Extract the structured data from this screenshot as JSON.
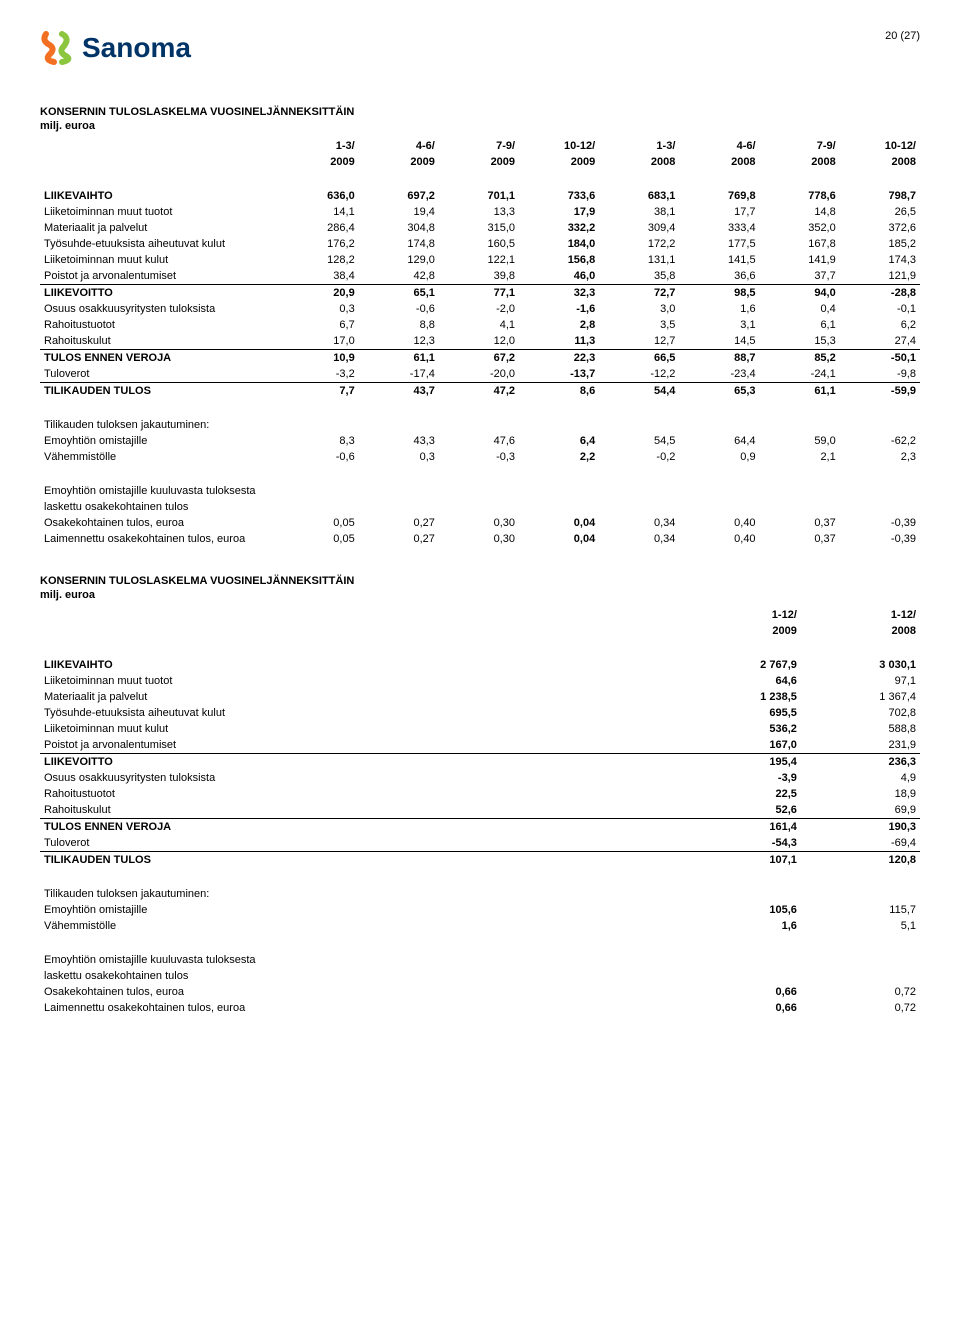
{
  "page_number": "20 (27)",
  "brand": "Sanoma",
  "logo_colors": {
    "orange": "#f36f21",
    "green": "#8cc63f",
    "navy": "#003366"
  },
  "section1_title": "KONSERNIN TULOSLASKELMA VUOSINELJÄNNEKSITTÄIN",
  "section1_sub": "milj. euroa",
  "t1": {
    "headers1": [
      "1-3/",
      "4-6/",
      "7-9/",
      "10-12/",
      "1-3/",
      "4-6/",
      "7-9/",
      "10-12/"
    ],
    "headers2": [
      "2009",
      "2009",
      "2009",
      "2009",
      "2008",
      "2008",
      "2008",
      "2008"
    ],
    "rows": [
      {
        "label": "LIIKEVAIHTO",
        "v": [
          "636,0",
          "697,2",
          "701,1",
          "733,6",
          "683,1",
          "769,8",
          "778,6",
          "798,7"
        ],
        "bold": true,
        "sep": false
      },
      {
        "label": "Liiketoiminnan muut tuotot",
        "v": [
          "14,1",
          "19,4",
          "13,3",
          "17,9",
          "38,1",
          "17,7",
          "14,8",
          "26,5"
        ]
      },
      {
        "label": "Materiaalit ja palvelut",
        "v": [
          "286,4",
          "304,8",
          "315,0",
          "332,2",
          "309,4",
          "333,4",
          "352,0",
          "372,6"
        ]
      },
      {
        "label": "Työsuhde-etuuksista aiheutuvat kulut",
        "v": [
          "176,2",
          "174,8",
          "160,5",
          "184,0",
          "172,2",
          "177,5",
          "167,8",
          "185,2"
        ]
      },
      {
        "label": "Liiketoiminnan muut kulut",
        "v": [
          "128,2",
          "129,0",
          "122,1",
          "156,8",
          "131,1",
          "141,5",
          "141,9",
          "174,3"
        ]
      },
      {
        "label": "Poistot ja arvonalentumiset",
        "v": [
          "38,4",
          "42,8",
          "39,8",
          "46,0",
          "35,8",
          "36,6",
          "37,7",
          "121,9"
        ]
      },
      {
        "label": "LIIKEVOITTO",
        "v": [
          "20,9",
          "65,1",
          "77,1",
          "32,3",
          "72,7",
          "98,5",
          "94,0",
          "-28,8"
        ],
        "bold": true,
        "sep": true
      },
      {
        "label": "Osuus osakkuusyritysten tuloksista",
        "v": [
          "0,3",
          "-0,6",
          "-2,0",
          "-1,6",
          "3,0",
          "1,6",
          "0,4",
          "-0,1"
        ]
      },
      {
        "label": "Rahoitustuotot",
        "v": [
          "6,7",
          "8,8",
          "4,1",
          "2,8",
          "3,5",
          "3,1",
          "6,1",
          "6,2"
        ]
      },
      {
        "label": "Rahoituskulut",
        "v": [
          "17,0",
          "12,3",
          "12,0",
          "11,3",
          "12,7",
          "14,5",
          "15,3",
          "27,4"
        ]
      },
      {
        "label": "TULOS ENNEN VEROJA",
        "v": [
          "10,9",
          "61,1",
          "67,2",
          "22,3",
          "66,5",
          "88,7",
          "85,2",
          "-50,1"
        ],
        "bold": true,
        "sep": true
      },
      {
        "label": "Tuloverot",
        "v": [
          "-3,2",
          "-17,4",
          "-20,0",
          "-13,7",
          "-12,2",
          "-23,4",
          "-24,1",
          "-9,8"
        ]
      },
      {
        "label": "TILIKAUDEN TULOS",
        "v": [
          "7,7",
          "43,7",
          "47,2",
          "8,6",
          "54,4",
          "65,3",
          "61,1",
          "-59,9"
        ],
        "bold": true,
        "sep": true
      }
    ],
    "alloc_title": "Tilikauden tuloksen jakautuminen:",
    "alloc": [
      {
        "label": "Emoyhtiön omistajille",
        "v": [
          "8,3",
          "43,3",
          "47,6",
          "6,4",
          "54,5",
          "64,4",
          "59,0",
          "-62,2"
        ]
      },
      {
        "label": "Vähemmistölle",
        "v": [
          "-0,6",
          "0,3",
          "-0,3",
          "2,2",
          "-0,2",
          "0,9",
          "2,1",
          "2,3"
        ]
      }
    ],
    "eps_title1": "Emoyhtiön omistajille kuuluvasta tuloksesta",
    "eps_title2": "laskettu osakekohtainen tulos",
    "eps": [
      {
        "label": "Osakekohtainen tulos, euroa",
        "v": [
          "0,05",
          "0,27",
          "0,30",
          "0,04",
          "0,34",
          "0,40",
          "0,37",
          "-0,39"
        ]
      },
      {
        "label": "Laimennettu osakekohtainen tulos, euroa",
        "v": [
          "0,05",
          "0,27",
          "0,30",
          "0,04",
          "0,34",
          "0,40",
          "0,37",
          "-0,39"
        ]
      }
    ]
  },
  "section2_title": "KONSERNIN TULOSLASKELMA VUOSINELJÄNNEKSITTÄIN",
  "section2_sub": "milj. euroa",
  "t2": {
    "headers1": [
      "1-12/",
      "1-12/"
    ],
    "headers2": [
      "2009",
      "2008"
    ],
    "rows": [
      {
        "label": "LIIKEVAIHTO",
        "v": [
          "2 767,9",
          "3 030,1"
        ],
        "bold": true
      },
      {
        "label": "Liiketoiminnan muut tuotot",
        "v": [
          "64,6",
          "97,1"
        ]
      },
      {
        "label": "Materiaalit ja palvelut",
        "v": [
          "1 238,5",
          "1 367,4"
        ]
      },
      {
        "label": "Työsuhde-etuuksista aiheutuvat kulut",
        "v": [
          "695,5",
          "702,8"
        ]
      },
      {
        "label": "Liiketoiminnan muut kulut",
        "v": [
          "536,2",
          "588,8"
        ]
      },
      {
        "label": "Poistot ja arvonalentumiset",
        "v": [
          "167,0",
          "231,9"
        ]
      },
      {
        "label": "LIIKEVOITTO",
        "v": [
          "195,4",
          "236,3"
        ],
        "bold": true,
        "sep": true
      },
      {
        "label": "Osuus osakkuusyritysten tuloksista",
        "v": [
          "-3,9",
          "4,9"
        ]
      },
      {
        "label": "Rahoitustuotot",
        "v": [
          "22,5",
          "18,9"
        ]
      },
      {
        "label": "Rahoituskulut",
        "v": [
          "52,6",
          "69,9"
        ]
      },
      {
        "label": "TULOS ENNEN VEROJA",
        "v": [
          "161,4",
          "190,3"
        ],
        "bold": true,
        "sep": true
      },
      {
        "label": "Tuloverot",
        "v": [
          "-54,3",
          "-69,4"
        ]
      },
      {
        "label": "TILIKAUDEN TULOS",
        "v": [
          "107,1",
          "120,8"
        ],
        "bold": true,
        "sep": true
      }
    ],
    "alloc_title": "Tilikauden tuloksen jakautuminen:",
    "alloc": [
      {
        "label": "Emoyhtiön omistajille",
        "v": [
          "105,6",
          "115,7"
        ]
      },
      {
        "label": "Vähemmistölle",
        "v": [
          "1,6",
          "5,1"
        ]
      }
    ],
    "eps_title1": "Emoyhtiön omistajille kuuluvasta tuloksesta",
    "eps_title2": "laskettu osakekohtainen tulos",
    "eps": [
      {
        "label": "Osakekohtainen tulos, euroa",
        "v": [
          "0,66",
          "0,72"
        ]
      },
      {
        "label": "Laimennettu osakekohtainen tulos, euroa",
        "v": [
          "0,66",
          "0,72"
        ]
      }
    ]
  }
}
